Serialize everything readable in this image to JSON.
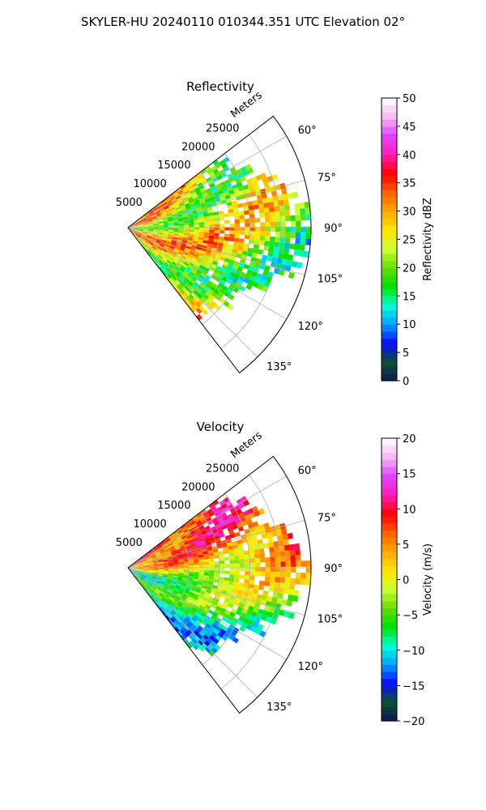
{
  "figure_title": "SKYLER-HU  20240110  010344.351 UTC Elevation 02°",
  "chart_data": [
    {
      "type": "heatmap",
      "projection": "polar-sector",
      "title": "Reflectivity",
      "radial_label": "Meters",
      "radial_ticks": [
        5000,
        10000,
        15000,
        20000,
        25000
      ],
      "radial_tick_labels": [
        "5000",
        "10000",
        "15000",
        "20000",
        "25000"
      ],
      "r_max": 30000,
      "theta_range_deg": [
        52.5,
        142.5
      ],
      "theta_ticks": [
        60,
        75,
        90,
        105,
        120,
        135
      ],
      "theta_tick_labels": [
        "60°",
        "75°",
        "90°",
        "105°",
        "120°",
        "135°"
      ],
      "grid": true,
      "colorbar": {
        "label": "Reflectivity dBZ",
        "range": [
          0,
          50
        ],
        "ticks": [
          0,
          5,
          10,
          15,
          20,
          25,
          30,
          35,
          40,
          45,
          50
        ],
        "tick_labels": [
          "0",
          "5",
          "10",
          "15",
          "20",
          "25",
          "30",
          "35",
          "40",
          "45",
          "50"
        ],
        "colors": [
          "#0a1a52",
          "#0b5130",
          "#0a0aff",
          "#00a0ff",
          "#00ffd8",
          "#00e000",
          "#66dd00",
          "#ccff33",
          "#ffe500",
          "#ffaa00",
          "#ff6000",
          "#ff0000",
          "#ff1cb4",
          "#dd44ff",
          "#f4b8f4",
          "#ffffff"
        ]
      }
    },
    {
      "type": "heatmap",
      "projection": "polar-sector",
      "title": "Velocity",
      "radial_label": "Meters",
      "radial_ticks": [
        5000,
        10000,
        15000,
        20000,
        25000
      ],
      "radial_tick_labels": [
        "5000",
        "10000",
        "15000",
        "20000",
        "25000"
      ],
      "r_max": 30000,
      "theta_range_deg": [
        52.5,
        142.5
      ],
      "theta_ticks": [
        60,
        75,
        90,
        105,
        120,
        135
      ],
      "theta_tick_labels": [
        "60°",
        "75°",
        "90°",
        "105°",
        "120°",
        "135°"
      ],
      "grid": true,
      "colorbar": {
        "label": "Velocity (m/s)",
        "range": [
          -20,
          20
        ],
        "ticks": [
          -20,
          -15,
          -10,
          -5,
          0,
          5,
          10,
          15,
          20
        ],
        "tick_labels": [
          "−20",
          "−15",
          "−10",
          "−5",
          "0",
          "5",
          "10",
          "15",
          "20"
        ],
        "colors": [
          "#0a1a52",
          "#0b5130",
          "#0a0aff",
          "#00a0ff",
          "#00ffd8",
          "#00e000",
          "#66dd00",
          "#ccff33",
          "#ffe500",
          "#ffaa00",
          "#ff6000",
          "#ff0000",
          "#ff1cb4",
          "#dd44ff",
          "#f4b8f4",
          "#ffffff"
        ]
      }
    }
  ]
}
